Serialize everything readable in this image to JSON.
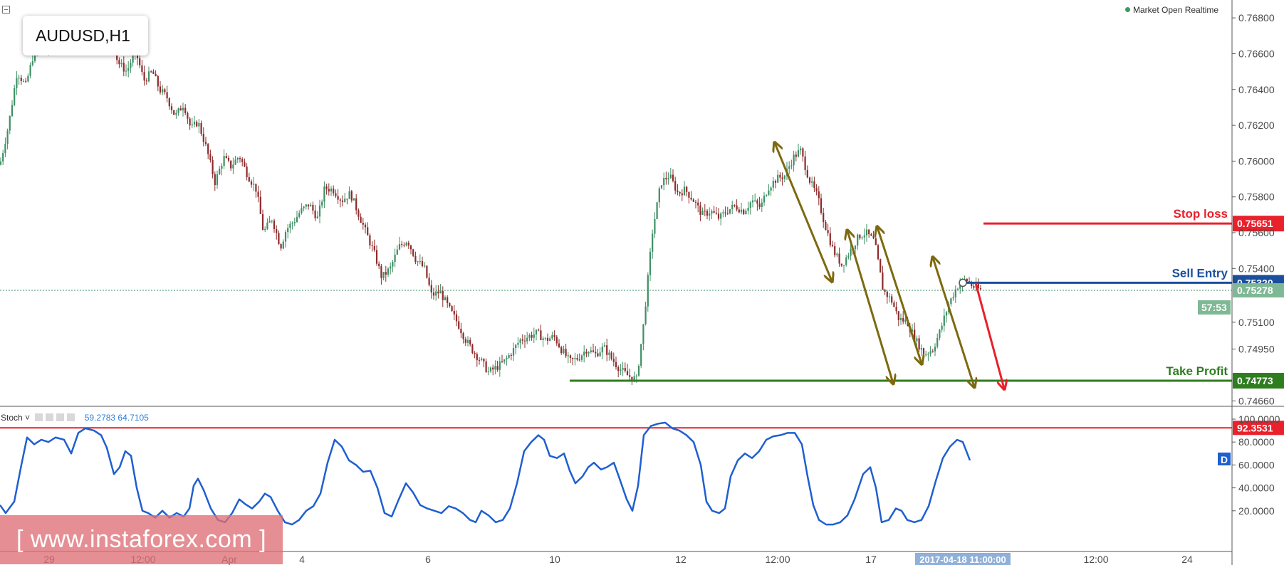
{
  "window": {
    "symbol": "AUDUSD,H1",
    "market_status": "Market Open  Realtime"
  },
  "watermark": "[ www.instaforex.com ]",
  "colors": {
    "up_candle": "#3e8f64",
    "down_candle": "#8d2a2a",
    "stop_loss": "#e8212b",
    "sell_entry": "#1a4f9c",
    "take_profit": "#2e7d1e",
    "arrows_olive": "#7d6a10",
    "arrow_red": "#e8212b",
    "stoch_line": "#1f5fd0",
    "axis_text": "#4a4a4a"
  },
  "chart_data": [
    {
      "type": "candlestick",
      "title": "AUDUSD,H1",
      "x_tick_labels": [
        "29",
        "12:00",
        "Apr",
        "4",
        "6",
        "10",
        "12",
        "12:00",
        "17",
        "2017-04-18 11:00:00",
        "12:00",
        "24"
      ],
      "y_tick_labels": [
        "0.76800",
        "0.76600",
        "0.76400",
        "0.76200",
        "0.76000",
        "0.75800",
        "0.75600",
        "0.75400",
        "0.75100",
        "0.74950",
        "0.74660"
      ],
      "ylim": [
        0.7463,
        0.769
      ],
      "current_price": 0.75278,
      "countdown": "57:53",
      "grid": false,
      "close_path": [
        [
          0,
          0.7598
        ],
        [
          12,
          0.762
        ],
        [
          24,
          0.765
        ],
        [
          36,
          0.7642
        ],
        [
          46,
          0.7658
        ],
        [
          56,
          0.7664
        ],
        [
          68,
          0.7662
        ],
        [
          80,
          0.7668
        ],
        [
          90,
          0.7666
        ],
        [
          100,
          0.7672
        ],
        [
          112,
          0.7674
        ],
        [
          124,
          0.7675
        ],
        [
          136,
          0.7673
        ],
        [
          146,
          0.7676
        ],
        [
          156,
          0.7668
        ],
        [
          166,
          0.7655
        ],
        [
          178,
          0.765
        ],
        [
          190,
          0.7662
        ],
        [
          202,
          0.7645
        ],
        [
          214,
          0.765
        ],
        [
          224,
          0.764
        ],
        [
          234,
          0.7636
        ],
        [
          246,
          0.7625
        ],
        [
          258,
          0.7632
        ],
        [
          268,
          0.7618
        ],
        [
          278,
          0.7622
        ],
        [
          290,
          0.7607
        ],
        [
          302,
          0.7588
        ],
        [
          314,
          0.7602
        ],
        [
          324,
          0.7597
        ],
        [
          336,
          0.7603
        ],
        [
          348,
          0.7592
        ],
        [
          360,
          0.7584
        ],
        [
          370,
          0.756
        ],
        [
          382,
          0.7568
        ],
        [
          394,
          0.7552
        ],
        [
          402,
          0.7562
        ],
        [
          412,
          0.7566
        ],
        [
          422,
          0.7572
        ],
        [
          434,
          0.7576
        ],
        [
          446,
          0.7568
        ],
        [
          456,
          0.7585
        ],
        [
          468,
          0.7584
        ],
        [
          480,
          0.7578
        ],
        [
          492,
          0.7582
        ],
        [
          504,
          0.757
        ],
        [
          514,
          0.756
        ],
        [
          526,
          0.7548
        ],
        [
          536,
          0.7535
        ],
        [
          548,
          0.754
        ],
        [
          560,
          0.7552
        ],
        [
          572,
          0.7556
        ],
        [
          584,
          0.7545
        ],
        [
          596,
          0.754
        ],
        [
          606,
          0.7525
        ],
        [
          618,
          0.7527
        ],
        [
          630,
          0.7518
        ],
        [
          642,
          0.751
        ],
        [
          654,
          0.75
        ],
        [
          666,
          0.7493
        ],
        [
          676,
          0.7488
        ],
        [
          686,
          0.7482
        ],
        [
          698,
          0.7485
        ],
        [
          708,
          0.7488
        ],
        [
          720,
          0.7494
        ],
        [
          730,
          0.75
        ],
        [
          742,
          0.7502
        ],
        [
          754,
          0.7504
        ],
        [
          766,
          0.75
        ],
        [
          778,
          0.7502
        ],
        [
          788,
          0.7495
        ],
        [
          800,
          0.7488
        ],
        [
          812,
          0.749
        ],
        [
          824,
          0.7495
        ],
        [
          836,
          0.7492
        ],
        [
          848,
          0.7496
        ],
        [
          858,
          0.749
        ],
        [
          870,
          0.7484
        ],
        [
          882,
          0.748
        ],
        [
          894,
          0.7478
        ],
        [
          904,
          0.751
        ],
        [
          916,
          0.756
        ],
        [
          928,
          0.7588
        ],
        [
          940,
          0.7592
        ],
        [
          952,
          0.7582
        ],
        [
          962,
          0.7584
        ],
        [
          974,
          0.7578
        ],
        [
          986,
          0.757
        ],
        [
          998,
          0.7572
        ],
        [
          1010,
          0.7568
        ],
        [
          1020,
          0.7572
        ],
        [
          1032,
          0.7575
        ],
        [
          1044,
          0.7572
        ],
        [
          1056,
          0.7578
        ],
        [
          1068,
          0.7574
        ],
        [
          1078,
          0.7585
        ],
        [
          1090,
          0.759
        ],
        [
          1102,
          0.7592
        ],
        [
          1114,
          0.7602
        ],
        [
          1124,
          0.7606
        ],
        [
          1136,
          0.759
        ],
        [
          1148,
          0.758
        ],
        [
          1158,
          0.7565
        ],
        [
          1170,
          0.755
        ],
        [
          1182,
          0.7542
        ],
        [
          1194,
          0.755
        ],
        [
          1206,
          0.7558
        ],
        [
          1216,
          0.756
        ],
        [
          1228,
          0.7555
        ],
        [
          1240,
          0.7528
        ],
        [
          1252,
          0.7522
        ],
        [
          1262,
          0.7512
        ],
        [
          1274,
          0.751
        ],
        [
          1286,
          0.75
        ],
        [
          1298,
          0.7492
        ],
        [
          1310,
          0.7495
        ],
        [
          1320,
          0.7505
        ],
        [
          1332,
          0.752
        ],
        [
          1344,
          0.753
        ],
        [
          1356,
          0.7534
        ],
        [
          1366,
          0.753
        ],
        [
          1378,
          0.75278
        ]
      ],
      "lines": [
        {
          "label": "Stop loss",
          "value": 0.75651,
          "tag": "0.75651"
        },
        {
          "label": "Sell Entry",
          "value": 0.7532,
          "tag": "0.75320"
        },
        {
          "label": "Take Profit",
          "value": 0.74773,
          "tag": "0.74773"
        }
      ],
      "annotations": [
        {
          "kind": "arrow-double",
          "from": [
            1088,
            0.761
          ],
          "to": [
            1168,
            0.7533
          ]
        },
        {
          "kind": "arrow-double",
          "from": [
            1190,
            0.7561
          ],
          "to": [
            1254,
            0.7476
          ]
        },
        {
          "kind": "arrow-double",
          "from": [
            1232,
            0.7563
          ],
          "to": [
            1294,
            0.7487
          ]
        },
        {
          "kind": "arrow-double",
          "from": [
            1310,
            0.7546
          ],
          "to": [
            1368,
            0.7474
          ]
        },
        {
          "kind": "arrow",
          "color": "red",
          "from": [
            1370,
            0.7532
          ],
          "to": [
            1410,
            0.7473
          ]
        }
      ]
    },
    {
      "type": "line",
      "indicator": "Stoch",
      "legend_values": "59.2783  64.7105",
      "y_tick_labels": [
        "100.0000",
        "80.0000",
        "60.0000",
        "40.0000",
        "20.0000"
      ],
      "ylim": [
        0,
        100
      ],
      "level_line": {
        "value": 92.3531,
        "tag": "92.3531"
      },
      "marker": "D",
      "k_path": [
        [
          0,
          25
        ],
        [
          8,
          18
        ],
        [
          20,
          28
        ],
        [
          30,
          60
        ],
        [
          38,
          84
        ],
        [
          48,
          78
        ],
        [
          58,
          82
        ],
        [
          68,
          80
        ],
        [
          78,
          84
        ],
        [
          90,
          82
        ],
        [
          100,
          70
        ],
        [
          110,
          88
        ],
        [
          120,
          92
        ],
        [
          132,
          90
        ],
        [
          142,
          86
        ],
        [
          150,
          75
        ],
        [
          160,
          52
        ],
        [
          168,
          58
        ],
        [
          176,
          72
        ],
        [
          184,
          68
        ],
        [
          192,
          40
        ],
        [
          200,
          20
        ],
        [
          208,
          18
        ],
        [
          218,
          14
        ],
        [
          228,
          20
        ],
        [
          238,
          14
        ],
        [
          248,
          18
        ],
        [
          258,
          15
        ],
        [
          266,
          22
        ],
        [
          272,
          42
        ],
        [
          278,
          48
        ],
        [
          286,
          38
        ],
        [
          296,
          22
        ],
        [
          306,
          12
        ],
        [
          316,
          10
        ],
        [
          326,
          18
        ],
        [
          336,
          30
        ],
        [
          344,
          26
        ],
        [
          354,
          22
        ],
        [
          364,
          28
        ],
        [
          372,
          35
        ],
        [
          380,
          32
        ],
        [
          390,
          20
        ],
        [
          400,
          10
        ],
        [
          410,
          8
        ],
        [
          420,
          12
        ],
        [
          430,
          20
        ],
        [
          440,
          24
        ],
        [
          450,
          35
        ],
        [
          460,
          62
        ],
        [
          470,
          82
        ],
        [
          480,
          76
        ],
        [
          490,
          64
        ],
        [
          500,
          60
        ],
        [
          510,
          54
        ],
        [
          520,
          55
        ],
        [
          530,
          40
        ],
        [
          540,
          18
        ],
        [
          550,
          15
        ],
        [
          560,
          30
        ],
        [
          570,
          44
        ],
        [
          580,
          36
        ],
        [
          590,
          25
        ],
        [
          600,
          22
        ],
        [
          610,
          20
        ],
        [
          620,
          18
        ],
        [
          630,
          24
        ],
        [
          640,
          22
        ],
        [
          650,
          18
        ],
        [
          660,
          12
        ],
        [
          668,
          10
        ],
        [
          676,
          20
        ],
        [
          686,
          16
        ],
        [
          696,
          10
        ],
        [
          706,
          12
        ],
        [
          716,
          22
        ],
        [
          726,
          44
        ],
        [
          736,
          72
        ],
        [
          746,
          80
        ],
        [
          756,
          86
        ],
        [
          764,
          82
        ],
        [
          772,
          68
        ],
        [
          782,
          66
        ],
        [
          792,
          70
        ],
        [
          800,
          55
        ],
        [
          808,
          44
        ],
        [
          818,
          50
        ],
        [
          826,
          58
        ],
        [
          834,
          62
        ],
        [
          844,
          56
        ],
        [
          852,
          58
        ],
        [
          862,
          62
        ],
        [
          870,
          48
        ],
        [
          880,
          30
        ],
        [
          888,
          20
        ],
        [
          896,
          42
        ],
        [
          904,
          86
        ],
        [
          914,
          94
        ],
        [
          924,
          96
        ],
        [
          934,
          97
        ],
        [
          944,
          92
        ],
        [
          954,
          90
        ],
        [
          964,
          86
        ],
        [
          974,
          80
        ],
        [
          984,
          60
        ],
        [
          992,
          28
        ],
        [
          1000,
          20
        ],
        [
          1010,
          18
        ],
        [
          1018,
          22
        ],
        [
          1026,
          50
        ],
        [
          1036,
          64
        ],
        [
          1046,
          70
        ],
        [
          1056,
          66
        ],
        [
          1066,
          72
        ],
        [
          1076,
          82
        ],
        [
          1086,
          85
        ],
        [
          1096,
          86
        ],
        [
          1106,
          88
        ],
        [
          1116,
          88
        ],
        [
          1126,
          78
        ],
        [
          1134,
          50
        ],
        [
          1142,
          25
        ],
        [
          1150,
          12
        ],
        [
          1160,
          8
        ],
        [
          1170,
          8
        ],
        [
          1180,
          10
        ],
        [
          1190,
          16
        ],
        [
          1200,
          30
        ],
        [
          1212,
          52
        ],
        [
          1222,
          58
        ],
        [
          1230,
          40
        ],
        [
          1238,
          10
        ],
        [
          1248,
          12
        ],
        [
          1258,
          22
        ],
        [
          1266,
          20
        ],
        [
          1274,
          12
        ],
        [
          1284,
          10
        ],
        [
          1294,
          12
        ],
        [
          1304,
          24
        ],
        [
          1314,
          46
        ],
        [
          1324,
          66
        ],
        [
          1334,
          76
        ],
        [
          1344,
          82
        ],
        [
          1352,
          80
        ],
        [
          1362,
          64
        ]
      ]
    }
  ]
}
